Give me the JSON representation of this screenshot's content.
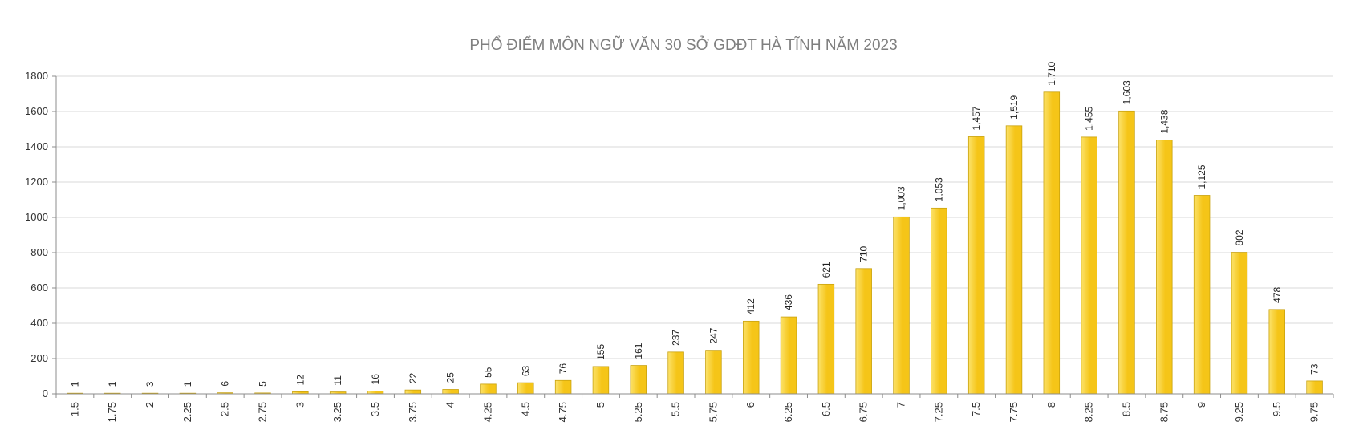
{
  "chart_data": {
    "type": "bar",
    "title": "PHỔ ĐIỂM MÔN NGỮ VĂN 30 SỞ GDĐT HÀ TĨNH NĂM 2023",
    "xlabel": "",
    "ylabel": "",
    "categories": [
      "1.5",
      "1.75",
      "2",
      "2.25",
      "2.5",
      "2.75",
      "3",
      "3.25",
      "3.5",
      "3.75",
      "4",
      "4.25",
      "4.5",
      "4.75",
      "5",
      "5.25",
      "5.5",
      "5.75",
      "6",
      "6.25",
      "6.5",
      "6.75",
      "7",
      "7.25",
      "7.5",
      "7.75",
      "8",
      "8.25",
      "8.5",
      "8.75",
      "9",
      "9.25",
      "9.5",
      "9.75"
    ],
    "values": [
      1,
      1,
      3,
      1,
      6,
      5,
      12,
      11,
      16,
      22,
      25,
      55,
      63,
      76,
      155,
      161,
      237,
      247,
      412,
      436,
      621,
      710,
      1003,
      1053,
      1457,
      1519,
      1710,
      1455,
      1603,
      1438,
      1125,
      802,
      478,
      73
    ],
    "data_labels": [
      "1",
      "1",
      "3",
      "1",
      "6",
      "5",
      "12",
      "11",
      "16",
      "22",
      "25",
      "55",
      "63",
      "76",
      "155",
      "161",
      "237",
      "247",
      "412",
      "436",
      "621",
      "710",
      "1,003",
      "1,053",
      "1,457",
      "1,519",
      "1,710",
      "1,455",
      "1,603",
      "1,438",
      "1,125",
      "802",
      "478",
      "73"
    ],
    "ylim": [
      0,
      1800
    ],
    "yticks": [
      0,
      200,
      400,
      600,
      800,
      1000,
      1200,
      1400,
      1600,
      1800
    ],
    "grid": true,
    "legend": "none",
    "colors": {
      "bar_fill": "#F5C518",
      "bar_highlight": "#FCE26A",
      "bar_stroke": "#C9A20E",
      "grid": "#d9d9d9",
      "axis": "#8c8c8c"
    }
  }
}
